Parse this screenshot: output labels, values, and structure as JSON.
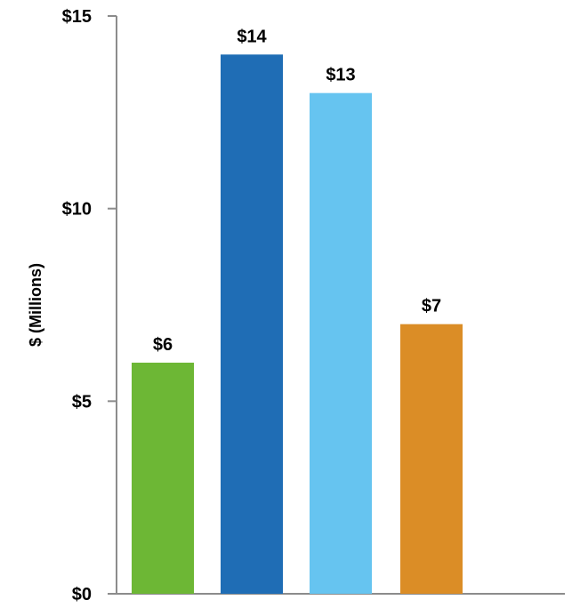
{
  "chart_data": {
    "type": "bar",
    "title": "",
    "xlabel": "",
    "ylabel": "$ (Millions)",
    "ylim": [
      0,
      15
    ],
    "yticks": [
      0,
      5,
      10,
      15
    ],
    "ytick_labels": [
      "$0",
      "$5",
      "$10",
      "$15"
    ],
    "grid": false,
    "categories": [
      "",
      "",
      "",
      ""
    ],
    "values": [
      6,
      14,
      13,
      7
    ],
    "data_labels": [
      "$6",
      "$14",
      "$13",
      "$7"
    ],
    "colors": [
      "#6db735",
      "#1f6db5",
      "#66c4f0",
      "#db8d26"
    ],
    "axis_color": "#8c8c8c"
  }
}
